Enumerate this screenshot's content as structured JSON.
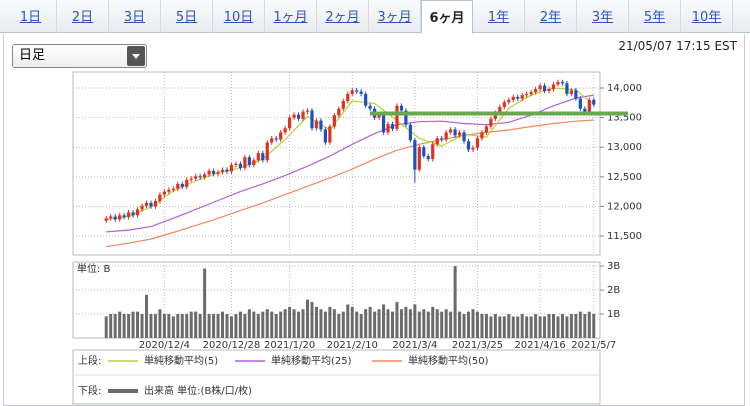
{
  "tabs": {
    "items": [
      "1日",
      "2日",
      "3日",
      "5日",
      "10日",
      "1ヶ月",
      "2ヶ月",
      "3ヶ月",
      "6ヶ月",
      "1年",
      "2年",
      "3年",
      "5年",
      "10年"
    ],
    "selected": 8
  },
  "dropdown": "日足",
  "timestamp": "21/05/07 17:15 EST",
  "chart_data": [
    {
      "type": "candlestick",
      "categories": [
        null,
        null,
        null,
        null,
        null,
        null,
        null,
        null,
        null,
        null,
        null,
        null,
        null,
        "2020/12/4",
        null,
        null,
        null,
        null,
        null,
        null,
        null,
        null,
        null,
        null,
        null,
        null,
        null,
        null,
        "2020/12/28",
        null,
        null,
        null,
        null,
        null,
        null,
        null,
        null,
        null,
        null,
        null,
        null,
        "2021/1/20",
        null,
        null,
        null,
        null,
        null,
        null,
        null,
        null,
        null,
        null,
        null,
        null,
        null,
        "2021/2/10",
        null,
        null,
        null,
        null,
        null,
        null,
        null,
        null,
        null,
        null,
        null,
        null,
        null,
        "2021/3/4",
        null,
        null,
        null,
        null,
        null,
        null,
        null,
        null,
        null,
        null,
        null,
        null,
        null,
        "2021/3/25",
        null,
        null,
        null,
        null,
        null,
        null,
        null,
        null,
        null,
        null,
        null,
        null,
        null,
        "2021/4/16",
        null,
        null,
        null,
        null,
        null,
        null,
        null,
        null,
        null,
        null,
        null,
        "2021/5/7"
      ],
      "open": [
        11760,
        11800,
        11830,
        11780,
        11850,
        11820,
        11900,
        11850,
        11950,
        12010,
        12060,
        12000,
        12090,
        12200,
        12250,
        12280,
        12300,
        12380,
        12330,
        12450,
        12470,
        12510,
        12490,
        12540,
        12600,
        12550,
        12580,
        12620,
        12590,
        12700,
        12720,
        12650,
        12830,
        12700,
        12780,
        12900,
        12780,
        13080,
        13150,
        13130,
        13250,
        13320,
        13500,
        13550,
        13480,
        13600,
        13620,
        13320,
        13450,
        13300,
        13080,
        13350,
        13540,
        13650,
        13780,
        13900,
        13960,
        13940,
        13900,
        13700,
        13650,
        13500,
        13560,
        13250,
        13390,
        13310,
        13700,
        13620,
        13380,
        13120,
        12620,
        13000,
        12850,
        12800,
        13050,
        13150,
        13130,
        13250,
        13300,
        13200,
        13250,
        13100,
        12960,
        12990,
        13150,
        13250,
        13350,
        13480,
        13580,
        13680,
        13760,
        13800,
        13850,
        13820,
        13880,
        13900,
        13930,
        13980,
        14040,
        13950,
        13980,
        14060,
        14100,
        14080,
        13900,
        13960,
        13820,
        13650,
        13600,
        13800
      ],
      "high": [
        11840,
        11870,
        11870,
        11890,
        11890,
        11940,
        11940,
        11990,
        12050,
        12100,
        12100,
        12130,
        12240,
        12290,
        12320,
        12340,
        12420,
        12420,
        12490,
        12510,
        12550,
        12550,
        12580,
        12640,
        12640,
        12620,
        12660,
        12660,
        12740,
        12760,
        12760,
        12870,
        12870,
        12820,
        12940,
        12940,
        13120,
        13190,
        13190,
        13290,
        13360,
        13540,
        13590,
        13590,
        13640,
        13660,
        13660,
        13490,
        13490,
        13340,
        13390,
        13580,
        13690,
        13820,
        13940,
        14000,
        14000,
        13980,
        13940,
        13740,
        13690,
        13600,
        13600,
        13430,
        13430,
        13740,
        13740,
        13660,
        13420,
        13160,
        13040,
        13040,
        12890,
        13090,
        13190,
        13190,
        13290,
        13340,
        13340,
        13290,
        13290,
        13140,
        13030,
        13190,
        13290,
        13390,
        13520,
        13620,
        13720,
        13800,
        13840,
        13890,
        13890,
        13920,
        13940,
        13970,
        14020,
        14080,
        14080,
        14020,
        14100,
        14140,
        14140,
        14120,
        14000,
        14000,
        13860,
        13690,
        13840,
        13840
      ],
      "low": [
        11720,
        11760,
        11740,
        11740,
        11780,
        11780,
        11810,
        11810,
        11910,
        11970,
        11960,
        11960,
        12050,
        12160,
        12210,
        12240,
        12260,
        12290,
        12290,
        12410,
        12430,
        12450,
        12450,
        12500,
        12510,
        12510,
        12540,
        12550,
        12550,
        12660,
        12610,
        12610,
        12660,
        12660,
        12740,
        12740,
        12740,
        13040,
        13090,
        13090,
        13210,
        13280,
        13460,
        13440,
        13440,
        13560,
        13280,
        13280,
        13260,
        13040,
        13040,
        13310,
        13500,
        13610,
        13740,
        13860,
        13900,
        13860,
        13660,
        13610,
        13460,
        13460,
        13210,
        13210,
        13270,
        13270,
        13580,
        13340,
        13080,
        12400,
        12580,
        12810,
        12760,
        12760,
        13010,
        13090,
        13090,
        13210,
        13160,
        13160,
        13060,
        12920,
        12920,
        12950,
        13110,
        13210,
        13310,
        13440,
        13540,
        13640,
        13720,
        13760,
        13780,
        13780,
        13840,
        13860,
        13890,
        13940,
        13910,
        13910,
        13940,
        14020,
        14040,
        13860,
        13860,
        13780,
        13610,
        13560,
        13560,
        13680
      ],
      "close": [
        11800,
        11830,
        11780,
        11850,
        11820,
        11900,
        11850,
        11950,
        12010,
        12060,
        12000,
        12090,
        12200,
        12250,
        12280,
        12300,
        12380,
        12330,
        12450,
        12470,
        12510,
        12490,
        12540,
        12600,
        12550,
        12580,
        12620,
        12590,
        12700,
        12720,
        12650,
        12830,
        12700,
        12780,
        12900,
        12780,
        13080,
        13150,
        13130,
        13250,
        13320,
        13500,
        13550,
        13480,
        13600,
        13620,
        13320,
        13450,
        13300,
        13080,
        13350,
        13540,
        13650,
        13780,
        13900,
        13960,
        13940,
        13900,
        13700,
        13650,
        13500,
        13560,
        13250,
        13390,
        13310,
        13700,
        13620,
        13380,
        13120,
        12620,
        13000,
        12850,
        12800,
        13050,
        13150,
        13130,
        13250,
        13300,
        13200,
        13250,
        13100,
        12960,
        12990,
        13150,
        13250,
        13350,
        13480,
        13580,
        13680,
        13760,
        13800,
        13850,
        13820,
        13880,
        13900,
        13930,
        13980,
        14040,
        13950,
        13980,
        14060,
        14100,
        14080,
        13900,
        13960,
        13820,
        13650,
        13600,
        13800,
        13720
      ],
      "up_color": "#e0301e",
      "down_color": "#1f4fc0",
      "series": [
        {
          "name": "単純移動平均(5)",
          "color": "#b5d334",
          "x": [
            0,
            5,
            10,
            15,
            20,
            25,
            30,
            35,
            40,
            45,
            50,
            55,
            60,
            65,
            70,
            75,
            80,
            85,
            90,
            95,
            100,
            105,
            109
          ],
          "values": [
            11780,
            11830,
            11990,
            12260,
            12430,
            12570,
            12650,
            12800,
            13130,
            13520,
            13290,
            13780,
            13740,
            13450,
            13150,
            13020,
            13220,
            13170,
            13660,
            13880,
            14000,
            13970,
            13720
          ]
        },
        {
          "name": "単純移動平均(25)",
          "color": "#b45ee0",
          "x": [
            0,
            5,
            10,
            15,
            20,
            25,
            30,
            35,
            40,
            45,
            50,
            55,
            60,
            65,
            70,
            75,
            80,
            85,
            90,
            95,
            100,
            105,
            109
          ],
          "values": [
            11570,
            11600,
            11660,
            11800,
            11950,
            12100,
            12250,
            12380,
            12520,
            12680,
            12850,
            13050,
            13230,
            13380,
            13430,
            13440,
            13400,
            13380,
            13420,
            13540,
            13700,
            13830,
            13880
          ]
        },
        {
          "name": "単純移動平均(50)",
          "color": "#f08a5d",
          "x": [
            0,
            5,
            10,
            15,
            20,
            25,
            30,
            35,
            40,
            45,
            50,
            55,
            60,
            65,
            70,
            75,
            80,
            85,
            90,
            95,
            100,
            105,
            109
          ],
          "values": [
            11320,
            11380,
            11450,
            11560,
            11680,
            11800,
            11930,
            12060,
            12200,
            12340,
            12480,
            12630,
            12800,
            12950,
            13050,
            13130,
            13200,
            13250,
            13290,
            13350,
            13400,
            13440,
            13460
          ]
        }
      ],
      "reference_line": {
        "value": 13570,
        "color": "#6aa84f"
      },
      "ylim": [
        11180,
        14270
      ],
      "yticks": [
        {
          "value": 11500,
          "label": "11,500"
        },
        {
          "value": 12000,
          "label": "12,000"
        },
        {
          "value": 12500,
          "label": "12,500"
        },
        {
          "value": 13000,
          "label": "13,000"
        },
        {
          "value": 13500,
          "label": "13,500"
        },
        {
          "value": 14000,
          "label": "14,000"
        }
      ],
      "grid": true,
      "legend_prefix": "上段:"
    },
    {
      "type": "bar",
      "name": "出来高 単位:(B株/口/枚)",
      "color": "#6b6b6b",
      "unit_label": "単位: B",
      "legend_prefix": "下段:",
      "values": [
        0.9,
        1.0,
        1.0,
        1.1,
        1.0,
        1.0,
        1.1,
        1.1,
        1.0,
        1.8,
        1.0,
        1.0,
        1.2,
        1.0,
        1.0,
        0.9,
        1.0,
        1.0,
        1.0,
        1.1,
        1.1,
        1.0,
        2.9,
        1.0,
        1.0,
        1.0,
        1.1,
        1.0,
        0.9,
        1.0,
        1.1,
        1.0,
        1.2,
        1.1,
        1.0,
        1.1,
        1.2,
        1.1,
        1.0,
        1.1,
        1.2,
        1.3,
        1.2,
        1.1,
        1.2,
        1.6,
        1.5,
        1.3,
        1.2,
        1.1,
        1.3,
        1.2,
        1.0,
        1.1,
        1.4,
        1.3,
        1.1,
        1.0,
        1.2,
        1.3,
        1.1,
        1.2,
        1.4,
        1.2,
        1.1,
        1.5,
        1.2,
        1.3,
        1.2,
        1.4,
        1.1,
        1.2,
        1.1,
        1.3,
        1.2,
        1.1,
        1.2,
        1.1,
        3.0,
        1.1,
        1.0,
        1.1,
        1.2,
        1.1,
        1.0,
        1.0,
        0.9,
        1.0,
        0.9,
        0.9,
        1.0,
        0.9,
        0.9,
        1.0,
        0.9,
        0.9,
        1.0,
        0.9,
        0.9,
        1.0,
        1.0,
        0.9,
        1.0,
        0.9,
        1.0,
        1.0,
        1.1,
        1.0,
        1.1,
        1.0
      ],
      "ylim": [
        0,
        3.17
      ],
      "yticks": [
        {
          "value": 1,
          "label": "1B"
        },
        {
          "value": 2,
          "label": "2B"
        },
        {
          "value": 3,
          "label": "3B"
        }
      ],
      "grid": true
    }
  ]
}
